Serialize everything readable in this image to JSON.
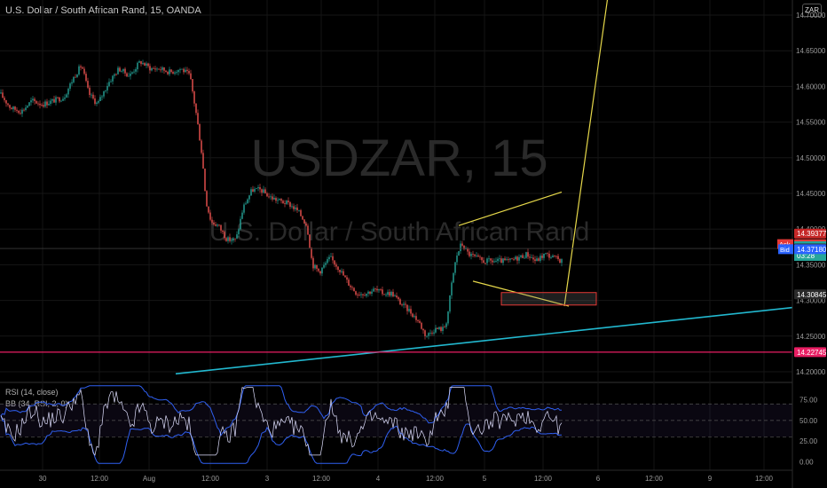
{
  "header": {
    "title": "U.S. Dollar / South African Rand, 15, OANDA",
    "currency_badge": "ZAR"
  },
  "watermark": {
    "symbol": "USDZAR, 15",
    "description": "U.S. Dollar / South African Rand"
  },
  "indicators": {
    "rsi_label": "RSI (14, close)",
    "bb_label": "BB (34, RSI, 2, 0)"
  },
  "colors": {
    "background": "#000000",
    "candle_up": "#26a69a",
    "candle_down": "#ef5350",
    "trendline": "#22b8cf",
    "support_line": "#e91e63",
    "drawing": "#e6d84a",
    "rsi": "#e0e0ff",
    "bollinger": "#2f5ff0",
    "ask": "#e53935",
    "bid": "#2962ff",
    "last": "#26a69a"
  },
  "price_markers": {
    "top": {
      "price": "14.39377"
    },
    "ask": {
      "label": "Ask",
      "price": "14.37896"
    },
    "last": {
      "price": "14.37538",
      "countdown": "03:28"
    },
    "mid": {
      "price": "14.37280"
    },
    "bid": {
      "label": "Bid",
      "price": "14.37180"
    },
    "target": {
      "price": "14.30845"
    },
    "support": {
      "price": "14.22745"
    }
  },
  "chart_data": {
    "type": "candlestick",
    "title": "U.S. Dollar / South African Rand, 15, OANDA",
    "x_tick_labels": [
      "30",
      "12:00",
      "Aug",
      "12:00",
      "3",
      "12:00",
      "4",
      "12:00",
      "5",
      "12:00",
      "6",
      "12:00",
      "9",
      "12:00"
    ],
    "y_tick_labels": [
      "14.70000",
      "14.65000",
      "14.60000",
      "14.55000",
      "14.50000",
      "14.45000",
      "14.40000",
      "14.35000",
      "14.30000",
      "14.25000",
      "14.20000"
    ],
    "ylim": [
      14.185,
      14.715
    ],
    "close_path": [
      [
        0,
        14.59
      ],
      [
        12,
        14.57
      ],
      [
        24,
        14.565
      ],
      [
        36,
        14.58
      ],
      [
        48,
        14.575
      ],
      [
        60,
        14.58
      ],
      [
        72,
        14.585
      ],
      [
        84,
        14.615
      ],
      [
        92,
        14.63
      ],
      [
        100,
        14.59
      ],
      [
        110,
        14.575
      ],
      [
        122,
        14.605
      ],
      [
        134,
        14.625
      ],
      [
        146,
        14.615
      ],
      [
        158,
        14.635
      ],
      [
        170,
        14.625
      ],
      [
        180,
        14.625
      ],
      [
        192,
        14.62
      ],
      [
        204,
        14.625
      ],
      [
        214,
        14.615
      ],
      [
        222,
        14.555
      ],
      [
        228,
        14.5
      ],
      [
        232,
        14.44
      ],
      [
        238,
        14.41
      ],
      [
        246,
        14.405
      ],
      [
        256,
        14.385
      ],
      [
        266,
        14.385
      ],
      [
        274,
        14.43
      ],
      [
        284,
        14.455
      ],
      [
        294,
        14.455
      ],
      [
        304,
        14.445
      ],
      [
        314,
        14.44
      ],
      [
        326,
        14.435
      ],
      [
        336,
        14.425
      ],
      [
        346,
        14.405
      ],
      [
        352,
        14.35
      ],
      [
        360,
        14.34
      ],
      [
        372,
        14.36
      ],
      [
        382,
        14.345
      ],
      [
        392,
        14.325
      ],
      [
        402,
        14.31
      ],
      [
        412,
        14.31
      ],
      [
        422,
        14.315
      ],
      [
        432,
        14.31
      ],
      [
        442,
        14.31
      ],
      [
        452,
        14.295
      ],
      [
        462,
        14.285
      ],
      [
        472,
        14.27
      ],
      [
        480,
        14.25
      ],
      [
        490,
        14.26
      ],
      [
        500,
        14.26
      ],
      [
        506,
        14.29
      ],
      [
        510,
        14.33
      ],
      [
        514,
        14.36
      ],
      [
        520,
        14.38
      ],
      [
        528,
        14.365
      ],
      [
        536,
        14.36
      ],
      [
        544,
        14.355
      ],
      [
        554,
        14.355
      ],
      [
        564,
        14.355
      ],
      [
        574,
        14.355
      ],
      [
        584,
        14.36
      ],
      [
        594,
        14.365
      ],
      [
        604,
        14.355
      ],
      [
        614,
        14.365
      ],
      [
        624,
        14.36
      ],
      [
        634,
        14.355
      ]
    ],
    "rsi_ylim": [
      -5,
      95
    ],
    "rsi_tick_labels": [
      "75.00",
      "50.00",
      "25.00",
      "0.00"
    ],
    "rsi_bands": [
      70,
      50,
      30
    ],
    "annotations": [
      {
        "type": "trendline",
        "from": [
          198,
          14.197
        ],
        "to": [
          893,
          14.29
        ]
      },
      {
        "type": "horizontal",
        "price": 14.22745
      },
      {
        "type": "wedge_upper",
        "from": [
          517,
          14.405
        ],
        "to": [
          633,
          14.452
        ]
      },
      {
        "type": "wedge_lower",
        "from": [
          533,
          14.327
        ],
        "to": [
          641,
          14.292
        ]
      },
      {
        "type": "projection",
        "from": [
          636,
          14.292
        ],
        "to": [
          686,
          14.735
        ]
      },
      {
        "type": "target_box",
        "x": [
          565,
          672
        ],
        "price": [
          14.2935,
          14.311
        ]
      }
    ]
  }
}
